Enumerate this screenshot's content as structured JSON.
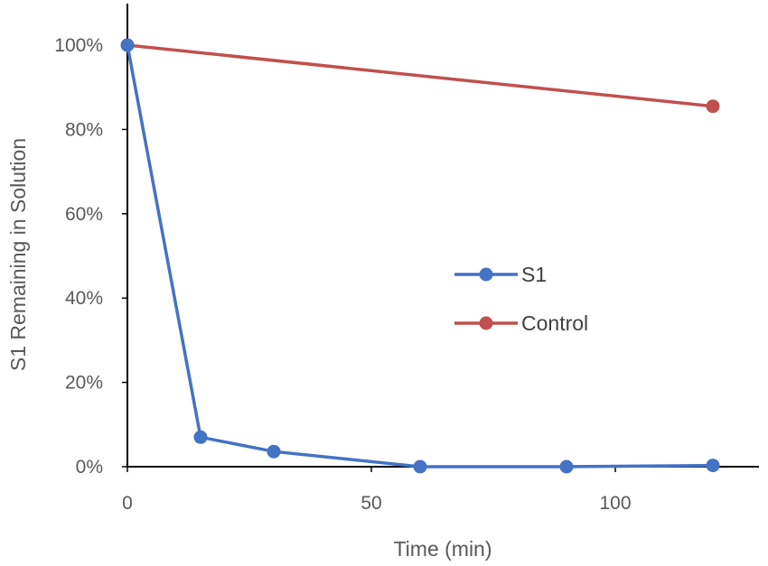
{
  "chart_data": {
    "type": "line",
    "title": "",
    "xlabel": "Time (min)",
    "ylabel": "S1 Remaining in Solution",
    "xlim": [
      0,
      130
    ],
    "ylim": [
      0,
      1.1
    ],
    "x_ticks": [
      0,
      50,
      100
    ],
    "x_tick_labels": [
      "0",
      "50",
      "100"
    ],
    "y_ticks": [
      0,
      0.2,
      0.4,
      0.6,
      0.8,
      1.0
    ],
    "y_tick_labels": [
      "0%",
      "20%",
      "40%",
      "60%",
      "80%",
      "100%"
    ],
    "grid": false,
    "legend_position": "center-right",
    "series": [
      {
        "name": "S1",
        "color": "#4472C4",
        "x": [
          0,
          15,
          30,
          60,
          90,
          120
        ],
        "y": [
          1.0,
          0.07,
          0.036,
          0.0,
          0.0,
          0.003
        ]
      },
      {
        "name": "Control",
        "color": "#C0504D",
        "x": [
          0,
          120
        ],
        "y": [
          1.0,
          0.855
        ]
      }
    ]
  }
}
